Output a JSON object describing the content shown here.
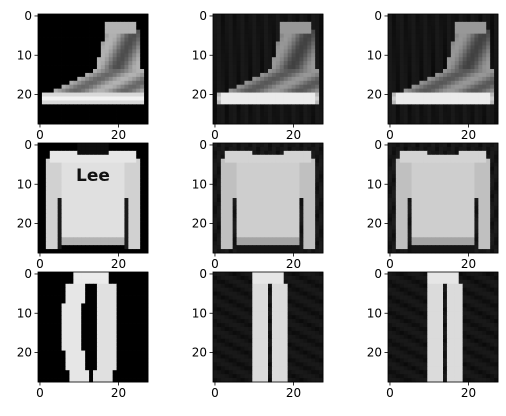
{
  "figure": {
    "grid_rows": 3,
    "grid_cols": 3,
    "image_size": [
      28,
      28
    ],
    "colormap": "gray",
    "panels": [
      {
        "row": 0,
        "col": 0,
        "content": "ankle-boot-original"
      },
      {
        "row": 0,
        "col": 1,
        "content": "ankle-boot-reconstruction-1"
      },
      {
        "row": 0,
        "col": 2,
        "content": "ankle-boot-reconstruction-2"
      },
      {
        "row": 1,
        "col": 0,
        "content": "pullover-original"
      },
      {
        "row": 1,
        "col": 1,
        "content": "pullover-reconstruction-1"
      },
      {
        "row": 1,
        "col": 2,
        "content": "pullover-reconstruction-2"
      },
      {
        "row": 2,
        "col": 0,
        "content": "trouser-original"
      },
      {
        "row": 2,
        "col": 1,
        "content": "trouser-reconstruction-1"
      },
      {
        "row": 2,
        "col": 2,
        "content": "trouser-reconstruction-2"
      }
    ],
    "x_ticks": [
      {
        "value": 0,
        "label": "0"
      },
      {
        "value": 20,
        "label": "20"
      }
    ],
    "y_ticks": [
      {
        "value": 0,
        "label": "0"
      },
      {
        "value": 10,
        "label": "10"
      },
      {
        "value": 20,
        "label": "20"
      }
    ],
    "annotations": {
      "pullover_logo_text": "Lee"
    }
  }
}
